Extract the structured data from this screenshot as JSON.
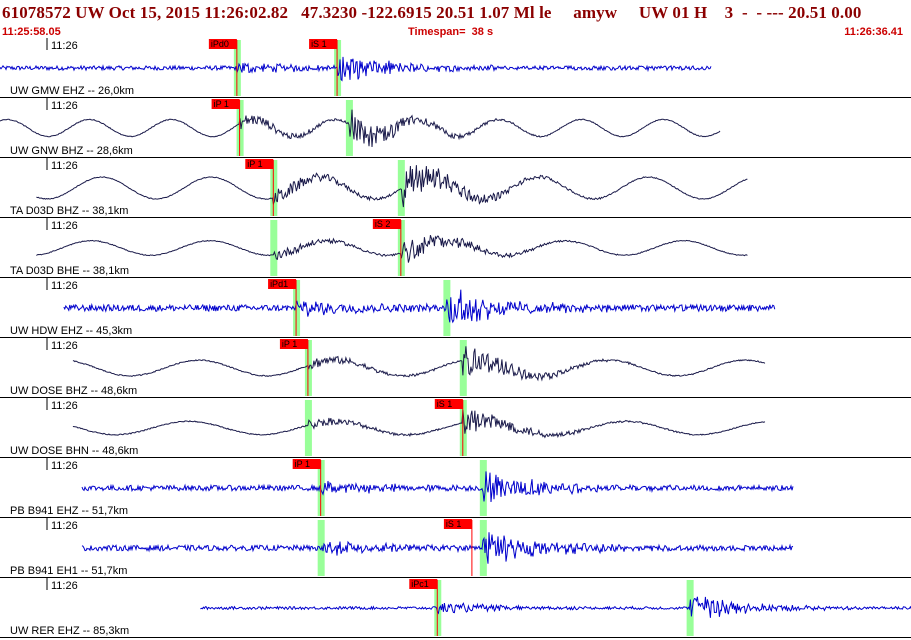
{
  "header": {
    "title": "61078572 UW Oct 15, 2015 11:26:02.82   47.3230 -122.6915 20.51 1.07 Ml le     amyw     UW 01 H    3  -  - --- 20.51 0.00",
    "start_time": "11:25:58.05",
    "timespan": "Timespan=  38 s",
    "end_time": "11:26:36.41"
  },
  "colors": {
    "title": "#8b0000",
    "header_text": "#cc0000",
    "trace_short_period": "#0000cc",
    "trace_broadband": "#1a1a4a",
    "pick_box": "#ff0000",
    "pick_highlight": "#99ff99",
    "tick_text": "#000000"
  },
  "channels": [
    {
      "id": "gmw-ehz",
      "label": "UW GMW EHZ -- 26,0km",
      "tick": "11:26",
      "style": "short",
      "start": 0.0,
      "end": 0.78,
      "amp": 0.6,
      "noise": 0.08,
      "period": 0,
      "picks": [
        {
          "label": "iPd0",
          "t": 0.26,
          "phase": "P"
        },
        {
          "label": "iS 1",
          "t": 0.37,
          "phase": "S"
        }
      ],
      "markers": [
        0.26,
        0.37
      ]
    },
    {
      "id": "gnw-bhz",
      "label": "UW GNW BHZ -- 28,6km",
      "tick": "11:26",
      "style": "broad",
      "start": 0.0,
      "end": 0.79,
      "amp": 0.7,
      "noise": 0.03,
      "period": 0.09,
      "picks": [
        {
          "label": "iP 1",
          "t": 0.263,
          "phase": "P"
        }
      ],
      "markers": [
        0.263,
        0.383
      ]
    },
    {
      "id": "d03d-bhz",
      "label": "TA D03D BHZ -- 38,1km",
      "tick": "11:26",
      "style": "broad",
      "start": 0.04,
      "end": 0.82,
      "amp": 0.9,
      "noise": 0.03,
      "period": 0.12,
      "picks": [
        {
          "label": "iP 1",
          "t": 0.3,
          "phase": "P"
        }
      ],
      "markers": [
        0.3,
        0.44
      ]
    },
    {
      "id": "d03d-bhe",
      "label": "TA D03D BHE -- 38,1km",
      "tick": "11:26",
      "style": "broad",
      "start": 0.04,
      "end": 0.82,
      "amp": 0.6,
      "noise": 0.03,
      "period": 0.13,
      "picks": [
        {
          "label": "iS 2",
          "t": 0.44,
          "phase": "S"
        }
      ],
      "markers": [
        0.3,
        0.44
      ]
    },
    {
      "id": "hdw-ehz",
      "label": "UW HDW EHZ -- 45,3km",
      "tick": "11:26",
      "style": "short",
      "start": 0.07,
      "end": 0.85,
      "amp": 0.9,
      "noise": 0.12,
      "period": 0,
      "picks": [
        {
          "label": "iPd1",
          "t": 0.325,
          "phase": "P"
        }
      ],
      "markers": [
        0.325,
        0.49
      ]
    },
    {
      "id": "dose-bhz",
      "label": "UW DOSE BHZ -- 48,6km",
      "tick": "11:26",
      "style": "broad",
      "start": 0.08,
      "end": 0.84,
      "amp": 0.65,
      "noise": 0.04,
      "period": 0.15,
      "picks": [
        {
          "label": "iP 1",
          "t": 0.338,
          "phase": "P"
        }
      ],
      "markers": [
        0.338,
        0.508
      ]
    },
    {
      "id": "dose-bhn",
      "label": "UW DOSE BHN -- 48,6km",
      "tick": "11:26",
      "style": "broad",
      "start": 0.08,
      "end": 0.84,
      "amp": 0.55,
      "noise": 0.04,
      "period": 0.16,
      "picks": [
        {
          "label": "iS 1",
          "t": 0.508,
          "phase": "S"
        }
      ],
      "markers": [
        0.338,
        0.508
      ]
    },
    {
      "id": "b941-ehz",
      "label": "PB B941 EHZ -- 51,7km",
      "tick": "11:26",
      "style": "short",
      "start": 0.09,
      "end": 0.87,
      "amp": 0.75,
      "noise": 0.1,
      "period": 0,
      "picks": [
        {
          "label": "iP 1",
          "t": 0.352,
          "phase": "P"
        }
      ],
      "markers": [
        0.352,
        0.53
      ]
    },
    {
      "id": "b941-eh1",
      "label": "PB B941 EH1 -- 51,7km",
      "tick": "11:26",
      "style": "short",
      "start": 0.09,
      "end": 0.87,
      "amp": 0.75,
      "noise": 0.1,
      "period": 0,
      "picks": [
        {
          "label": "iS 1",
          "t": 0.518,
          "phase": "S"
        }
      ],
      "markers": [
        0.352,
        0.53
      ]
    },
    {
      "id": "rer-ehz",
      "label": "UW RER EHZ -- 85,3km",
      "tick": "11:26",
      "style": "short",
      "start": 0.22,
      "end": 1.0,
      "amp": 0.6,
      "noise": 0.05,
      "period": 0,
      "picks": [
        {
          "label": "iPc1",
          "t": 0.48,
          "phase": "P"
        }
      ],
      "markers": [
        0.48,
        0.757
      ]
    }
  ]
}
